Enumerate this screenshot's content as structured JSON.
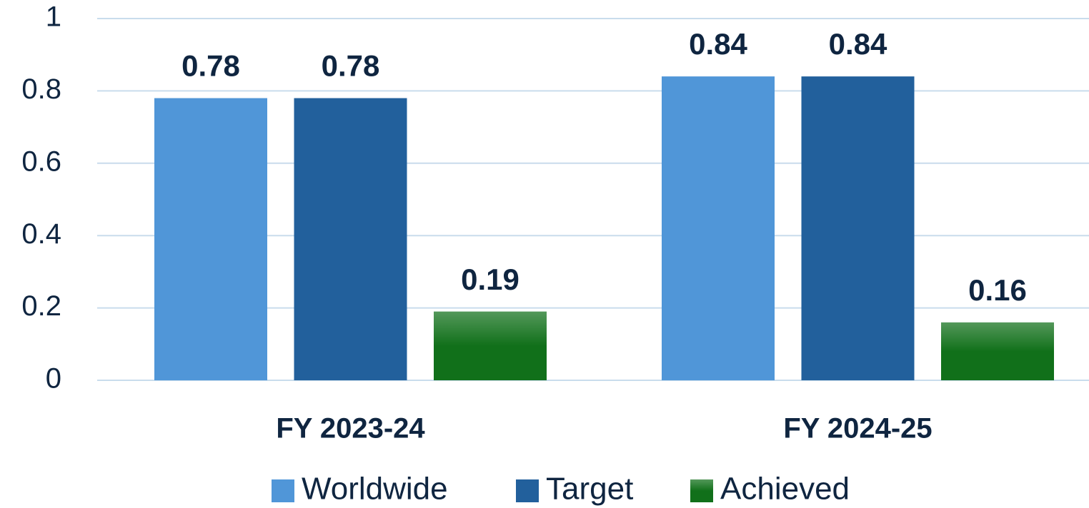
{
  "chart_data": {
    "type": "bar",
    "categories": [
      "FY 2023-24",
      "FY 2024-25"
    ],
    "series": [
      {
        "name": "Worldwide",
        "color": "#5096d8",
        "values": [
          0.78,
          0.84
        ]
      },
      {
        "name": "Target",
        "color": "#22609c",
        "values": [
          0.78,
          0.84
        ]
      },
      {
        "name": "Achieved",
        "color": "#11701a",
        "values": [
          0.19,
          0.16
        ]
      }
    ],
    "ylim": [
      0,
      1
    ],
    "yticks": [
      0,
      0.2,
      0.4,
      0.6,
      0.8,
      1
    ],
    "grid": true,
    "legend": "bottom"
  }
}
